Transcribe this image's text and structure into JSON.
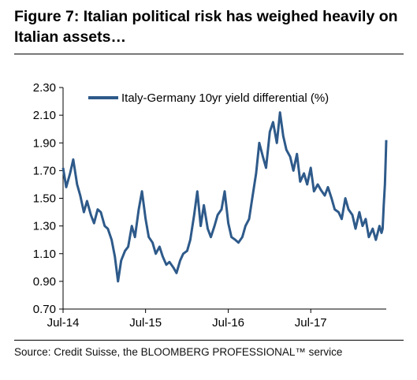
{
  "figure": {
    "title": "Figure 7: Italian political risk has weighed heavily on Italian assets…",
    "source": "Source: Credit Suisse, the BLOOMBERG PROFESSIONAL™ service"
  },
  "chart_data": {
    "type": "line",
    "title": "Figure 7: Italian political risk has weighed heavily on Italian assets…",
    "xlabel": "",
    "ylabel": "",
    "ylim": [
      0.7,
      2.3
    ],
    "yticks": [
      0.7,
      0.9,
      1.1,
      1.3,
      1.5,
      1.7,
      1.9,
      2.1,
      2.3
    ],
    "ytick_labels": [
      "0.70",
      "0.90",
      "1.10",
      "1.30",
      "1.50",
      "1.70",
      "1.90",
      "2.10",
      "2.30"
    ],
    "xlim": [
      "2014-07-01",
      "2018-05-31"
    ],
    "xticks": [
      "2014-07-01",
      "2015-07-01",
      "2016-07-01",
      "2017-07-01"
    ],
    "xtick_labels": [
      "Jul-14",
      "Jul-15",
      "Jul-16",
      "Jul-17"
    ],
    "grid": false,
    "legend": "top-left",
    "series": [
      {
        "name": "Italy-Germany 10yr yield differential (%)",
        "color": "#2e5a8a",
        "x": [
          "2014-07-01",
          "2014-07-15",
          "2014-08-01",
          "2014-08-15",
          "2014-09-01",
          "2014-09-15",
          "2014-10-01",
          "2014-10-15",
          "2014-11-01",
          "2014-11-15",
          "2014-12-01",
          "2014-12-15",
          "2015-01-01",
          "2015-01-15",
          "2015-02-01",
          "2015-02-15",
          "2015-03-01",
          "2015-03-15",
          "2015-04-01",
          "2015-04-15",
          "2015-05-01",
          "2015-05-15",
          "2015-06-01",
          "2015-06-15",
          "2015-07-01",
          "2015-07-15",
          "2015-08-01",
          "2015-08-15",
          "2015-09-01",
          "2015-09-15",
          "2015-10-01",
          "2015-10-15",
          "2015-11-01",
          "2015-11-15",
          "2015-12-01",
          "2015-12-15",
          "2016-01-01",
          "2016-01-15",
          "2016-02-01",
          "2016-02-15",
          "2016-03-01",
          "2016-03-15",
          "2016-04-01",
          "2016-04-15",
          "2016-05-01",
          "2016-05-15",
          "2016-06-01",
          "2016-06-15",
          "2016-07-01",
          "2016-07-15",
          "2016-08-01",
          "2016-08-15",
          "2016-09-01",
          "2016-09-15",
          "2016-10-01",
          "2016-10-15",
          "2016-11-01",
          "2016-11-15",
          "2016-12-01",
          "2016-12-15",
          "2017-01-01",
          "2017-01-15",
          "2017-02-01",
          "2017-02-15",
          "2017-03-01",
          "2017-03-15",
          "2017-04-01",
          "2017-04-15",
          "2017-05-01",
          "2017-05-15",
          "2017-06-01",
          "2017-06-15",
          "2017-07-01",
          "2017-07-15",
          "2017-08-01",
          "2017-08-15",
          "2017-09-01",
          "2017-09-15",
          "2017-10-01",
          "2017-10-15",
          "2017-11-01",
          "2017-11-15",
          "2017-12-01",
          "2017-12-15",
          "2018-01-01",
          "2018-01-15",
          "2018-02-01",
          "2018-02-15",
          "2018-03-01",
          "2018-03-15",
          "2018-04-01",
          "2018-04-15",
          "2018-05-01",
          "2018-05-10",
          "2018-05-15",
          "2018-05-20",
          "2018-05-25",
          "2018-05-29",
          "2018-05-31"
        ],
        "values": [
          1.72,
          1.58,
          1.68,
          1.78,
          1.6,
          1.52,
          1.4,
          1.48,
          1.38,
          1.32,
          1.42,
          1.4,
          1.3,
          1.28,
          1.2,
          1.08,
          0.9,
          1.05,
          1.12,
          1.15,
          1.3,
          1.22,
          1.42,
          1.55,
          1.35,
          1.22,
          1.18,
          1.1,
          1.15,
          1.08,
          1.02,
          1.04,
          1.0,
          0.96,
          1.05,
          1.1,
          1.12,
          1.2,
          1.38,
          1.55,
          1.3,
          1.45,
          1.28,
          1.22,
          1.3,
          1.38,
          1.42,
          1.55,
          1.32,
          1.22,
          1.2,
          1.18,
          1.22,
          1.3,
          1.35,
          1.5,
          1.68,
          1.9,
          1.8,
          1.72,
          1.98,
          2.05,
          1.9,
          2.12,
          1.95,
          1.85,
          1.8,
          1.7,
          1.82,
          1.62,
          1.68,
          1.6,
          1.72,
          1.55,
          1.6,
          1.56,
          1.52,
          1.58,
          1.5,
          1.42,
          1.4,
          1.35,
          1.5,
          1.42,
          1.38,
          1.28,
          1.4,
          1.3,
          1.35,
          1.22,
          1.28,
          1.2,
          1.3,
          1.25,
          1.28,
          1.45,
          1.6,
          1.8,
          1.92
        ]
      }
    ]
  }
}
